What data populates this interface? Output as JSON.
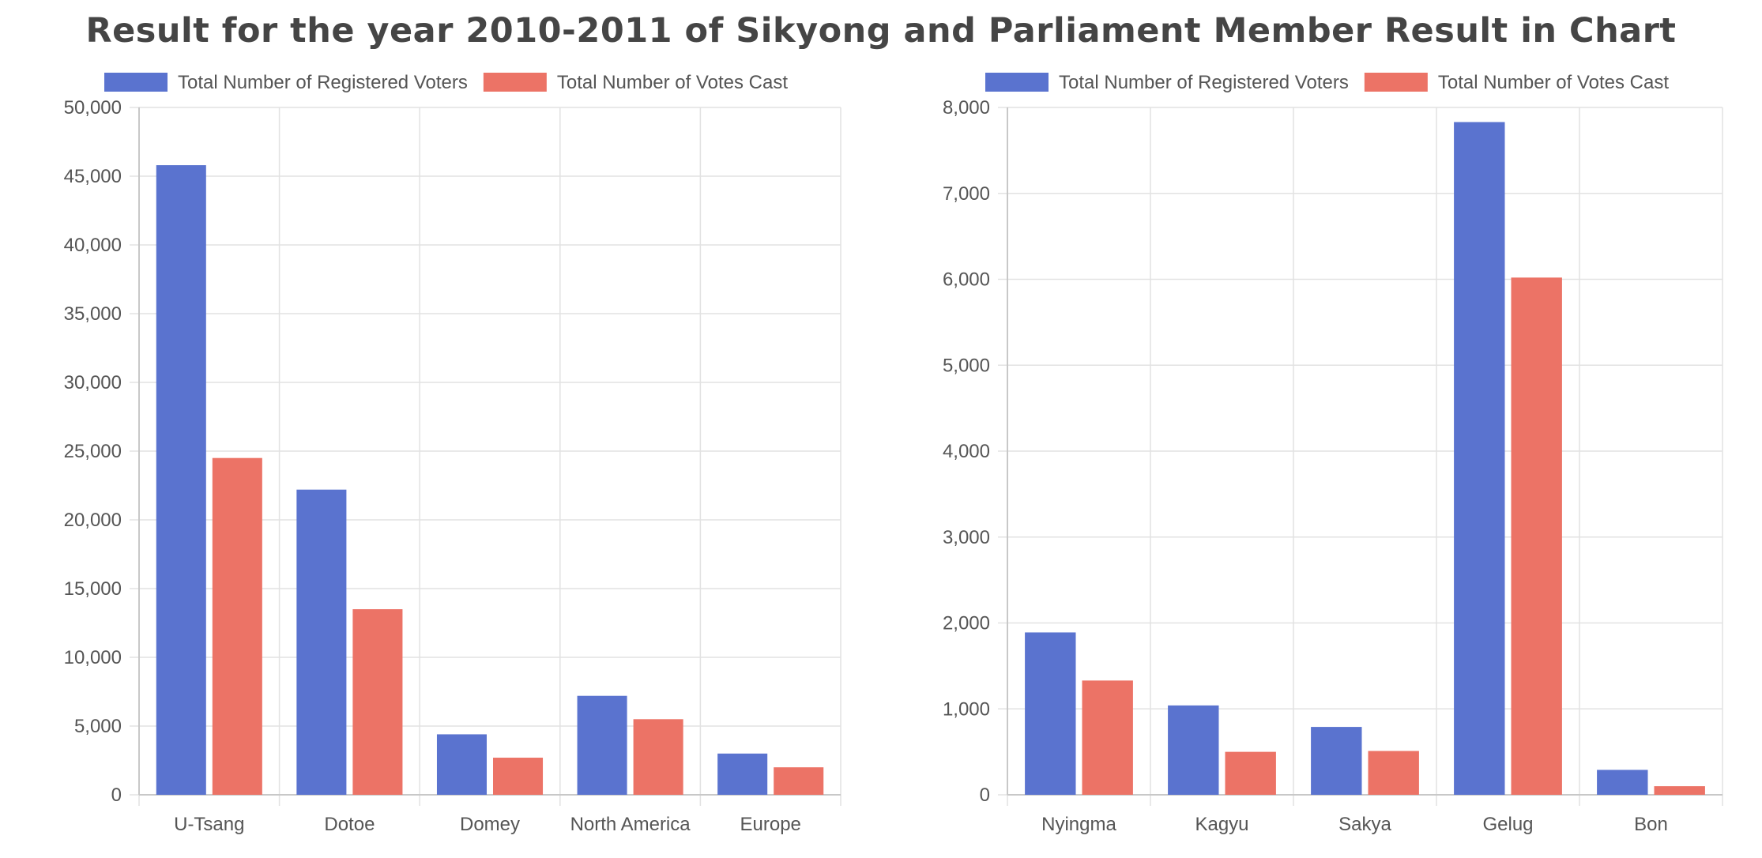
{
  "page": {
    "title": "Result for the year 2010-2011 of Sikyong and Parliament Member Result in Chart"
  },
  "colors": {
    "registered": "#5a73cf",
    "cast": "#ec7366",
    "grid": "#e2e2e2",
    "axis": "#c8c8c8",
    "text": "#555555",
    "title": "#454545"
  },
  "chart_data": [
    {
      "type": "bar",
      "title": "",
      "xlabel": "",
      "ylabel": "",
      "categories": [
        "U-Tsang",
        "Dotoe",
        "Domey",
        "North America",
        "Europe"
      ],
      "ylim": [
        0,
        50000
      ],
      "yticks": [
        0,
        5000,
        10000,
        15000,
        20000,
        25000,
        30000,
        35000,
        40000,
        45000,
        50000
      ],
      "ytick_labels": [
        "0",
        "5,000",
        "10,000",
        "15,000",
        "20,000",
        "25,000",
        "30,000",
        "35,000",
        "40,000",
        "45,000",
        "50,000"
      ],
      "grid": true,
      "legend": "top",
      "series": [
        {
          "name": "Total Number of Registered Voters",
          "color": "#5a73cf",
          "values": [
            45800,
            22200,
            4400,
            7200,
            3000
          ]
        },
        {
          "name": "Total Number of Votes Cast",
          "color": "#ec7366",
          "values": [
            24500,
            13500,
            2700,
            5500,
            2000
          ]
        }
      ]
    },
    {
      "type": "bar",
      "title": "",
      "xlabel": "",
      "ylabel": "",
      "categories": [
        "Nyingma",
        "Kagyu",
        "Sakya",
        "Gelug",
        "Bon"
      ],
      "ylim": [
        0,
        8000
      ],
      "yticks": [
        0,
        1000,
        2000,
        3000,
        4000,
        5000,
        6000,
        7000,
        8000
      ],
      "ytick_labels": [
        "0",
        "1,000",
        "2,000",
        "3,000",
        "4,000",
        "5,000",
        "6,000",
        "7,000",
        "8,000"
      ],
      "grid": true,
      "legend": "top",
      "series": [
        {
          "name": "Total Number of Registered Voters",
          "color": "#5a73cf",
          "values": [
            1890,
            1040,
            790,
            7830,
            290
          ]
        },
        {
          "name": "Total Number of Votes Cast",
          "color": "#ec7366",
          "values": [
            1330,
            500,
            510,
            6020,
            100
          ]
        }
      ]
    }
  ]
}
